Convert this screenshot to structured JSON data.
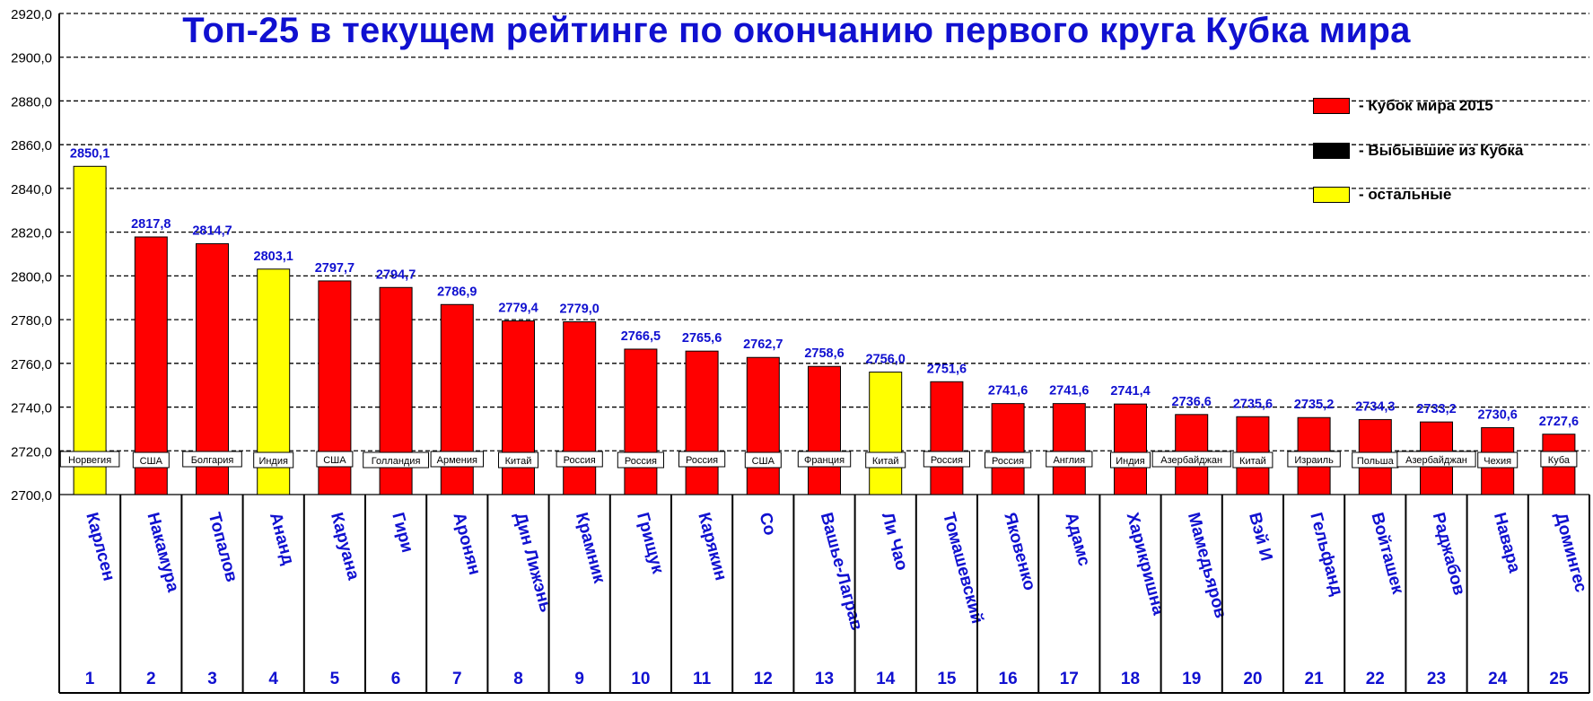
{
  "chart_data": {
    "type": "bar",
    "title": "Топ-25 в текущем рейтинге по окончанию первого круга Кубка мира",
    "ylim": [
      2700,
      2920
    ],
    "ytick_labels": [
      "2700,0",
      "2720,0",
      "2740,0",
      "2760,0",
      "2780,0",
      "2800,0",
      "2820,0",
      "2840,0",
      "2860,0",
      "2880,0",
      "2900,0",
      "2920,0"
    ],
    "grid": true,
    "legend_position": "top-right",
    "legend": [
      {
        "label": "- Кубок мира 2015",
        "color": "#ff0000"
      },
      {
        "label": "- Выбывшие из Кубка",
        "color": "#000000"
      },
      {
        "label": "- остальные",
        "color": "#ffff00"
      }
    ],
    "players": [
      {
        "rank": "1",
        "name": "Карлсен",
        "country": "Норвегия",
        "value": 2850.1,
        "label": "2850,1",
        "color": "#ffff00"
      },
      {
        "rank": "2",
        "name": "Накамура",
        "country": "США",
        "value": 2817.8,
        "label": "2817,8",
        "color": "#ff0000"
      },
      {
        "rank": "3",
        "name": "Топалов",
        "country": "Болгария",
        "value": 2814.7,
        "label": "2814,7",
        "color": "#ff0000"
      },
      {
        "rank": "4",
        "name": "Ананд",
        "country": "Индия",
        "value": 2803.1,
        "label": "2803,1",
        "color": "#ffff00"
      },
      {
        "rank": "5",
        "name": "Каруана",
        "country": "США",
        "value": 2797.7,
        "label": "2797,7",
        "color": "#ff0000"
      },
      {
        "rank": "6",
        "name": "Гири",
        "country": "Голландия",
        "value": 2794.7,
        "label": "2794,7",
        "color": "#ff0000"
      },
      {
        "rank": "7",
        "name": "Аронян",
        "country": "Армения",
        "value": 2786.9,
        "label": "2786,9",
        "color": "#ff0000"
      },
      {
        "rank": "8",
        "name": "Дин Лижэнь",
        "country": "Китай",
        "value": 2779.4,
        "label": "2779,4",
        "color": "#ff0000"
      },
      {
        "rank": "9",
        "name": "Крамник",
        "country": "Россия",
        "value": 2779.0,
        "label": "2779,0",
        "color": "#ff0000"
      },
      {
        "rank": "10",
        "name": "Грищук",
        "country": "Россия",
        "value": 2766.5,
        "label": "2766,5",
        "color": "#ff0000"
      },
      {
        "rank": "11",
        "name": "Карякин",
        "country": "Россия",
        "value": 2765.6,
        "label": "2765,6",
        "color": "#ff0000"
      },
      {
        "rank": "12",
        "name": "Со",
        "country": "США",
        "value": 2762.7,
        "label": "2762,7",
        "color": "#ff0000"
      },
      {
        "rank": "13",
        "name": "Вашье-Лаграв",
        "country": "Франция",
        "value": 2758.6,
        "label": "2758,6",
        "color": "#ff0000"
      },
      {
        "rank": "14",
        "name": "Ли Чао",
        "country": "Китай",
        "value": 2756.0,
        "label": "2756,0",
        "color": "#ffff00"
      },
      {
        "rank": "15",
        "name": "Томашевский",
        "country": "Россия",
        "value": 2751.6,
        "label": "2751,6",
        "color": "#ff0000"
      },
      {
        "rank": "16",
        "name": "Яковенко",
        "country": "Россия",
        "value": 2741.6,
        "label": "2741,6",
        "color": "#ff0000"
      },
      {
        "rank": "17",
        "name": "Адамс",
        "country": "Англия",
        "value": 2741.6,
        "label": "2741,6",
        "color": "#ff0000"
      },
      {
        "rank": "18",
        "name": "Харикришна",
        "country": "Индия",
        "value": 2741.4,
        "label": "2741,4",
        "color": "#ff0000"
      },
      {
        "rank": "19",
        "name": "Мамедьяров",
        "country": "Азербайджан",
        "value": 2736.6,
        "label": "2736,6",
        "color": "#ff0000"
      },
      {
        "rank": "20",
        "name": "Вэй И",
        "country": "Китай",
        "value": 2735.6,
        "label": "2735,6",
        "color": "#ff0000"
      },
      {
        "rank": "21",
        "name": "Гельфанд",
        "country": "Израиль",
        "value": 2735.2,
        "label": "2735,2",
        "color": "#ff0000"
      },
      {
        "rank": "22",
        "name": "Войташек",
        "country": "Польша",
        "value": 2734.3,
        "label": "2734,3",
        "color": "#ff0000"
      },
      {
        "rank": "23",
        "name": "Раджабов",
        "country": "Азербайджан",
        "value": 2733.2,
        "label": "2733,2",
        "color": "#ff0000"
      },
      {
        "rank": "24",
        "name": "Навара",
        "country": "Чехия",
        "value": 2730.6,
        "label": "2730,6",
        "color": "#ff0000"
      },
      {
        "rank": "25",
        "name": "Домингес",
        "country": "Куба",
        "value": 2727.6,
        "label": "2727,6",
        "color": "#ff0000"
      }
    ]
  }
}
